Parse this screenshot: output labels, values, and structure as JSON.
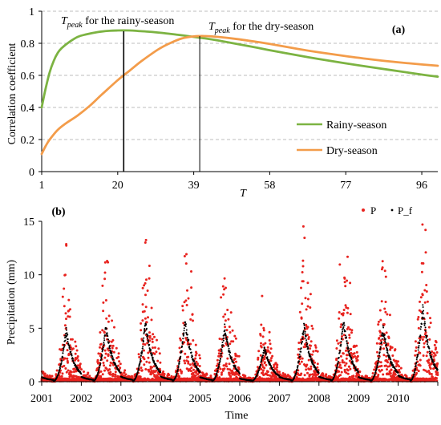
{
  "chart_data": [
    {
      "panel_label": "(a)",
      "type": "line",
      "xlabel": "T",
      "ylabel": "Correlation coefficient",
      "xlim": [
        1,
        100
      ],
      "ylim": [
        0,
        1
      ],
      "x_ticks": [
        1,
        20,
        39,
        58,
        77,
        96
      ],
      "y_ticks": [
        0,
        0.2,
        0.4,
        0.6,
        0.8,
        1
      ],
      "y_tick_labels": [
        "0",
        "0.2",
        "0.4",
        "0.6",
        "0.8",
        "1"
      ],
      "grid": "horizontal dashed",
      "legend_position": "lower-right",
      "series": [
        {
          "name": "Rainy-season",
          "color": "#7cb342",
          "x": [
            1,
            2,
            3,
            4,
            5,
            6,
            8,
            10,
            12,
            15,
            18,
            20,
            23,
            25,
            28,
            31,
            35,
            39,
            42,
            45,
            50,
            55,
            58,
            65,
            70,
            77,
            85,
            90,
            96,
            100
          ],
          "values": [
            0.4,
            0.52,
            0.62,
            0.69,
            0.74,
            0.77,
            0.81,
            0.84,
            0.855,
            0.87,
            0.878,
            0.88,
            0.88,
            0.877,
            0.872,
            0.865,
            0.853,
            0.84,
            0.83,
            0.818,
            0.795,
            0.772,
            0.757,
            0.725,
            0.703,
            0.675,
            0.645,
            0.627,
            0.605,
            0.592
          ]
        },
        {
          "name": "Dry-season",
          "color": "#f39c4a",
          "x": [
            1,
            2,
            3,
            5,
            7,
            10,
            13,
            16,
            20,
            23,
            26,
            30,
            33,
            36,
            39,
            42,
            45,
            50,
            55,
            58,
            65,
            70,
            77,
            85,
            90,
            96,
            100
          ],
          "values": [
            0.11,
            0.16,
            0.2,
            0.26,
            0.3,
            0.35,
            0.41,
            0.48,
            0.57,
            0.63,
            0.69,
            0.76,
            0.8,
            0.83,
            0.843,
            0.845,
            0.84,
            0.826,
            0.808,
            0.796,
            0.765,
            0.745,
            0.72,
            0.695,
            0.682,
            0.668,
            0.66
          ]
        }
      ],
      "annotations": [
        {
          "text_main": "T",
          "text_sub": "peak",
          "text_rest": " for the rainy-season",
          "x": 21.5
        },
        {
          "text_main": "T",
          "text_sub": "peak",
          "text_rest": " for the dry-season",
          "x": 40.5
        }
      ]
    },
    {
      "panel_label": "(b)",
      "type": "scatter",
      "xlabel": "Time",
      "ylabel": "Precipitation (mm)",
      "xlim": [
        2001,
        2011
      ],
      "ylim": [
        0,
        15
      ],
      "x_tick_labels": [
        "2001",
        "2002",
        "2003",
        "2004",
        "2005",
        "2006",
        "2007",
        "2008",
        "2009",
        "2010"
      ],
      "y_ticks": [
        0,
        5,
        10,
        15
      ],
      "legend_position": "top-right",
      "series": [
        {
          "name": "P",
          "color": "#e8231f",
          "marker": "dot",
          "note": "daily precipitation, seasonal peaks mid-year"
        },
        {
          "name": "P_f",
          "color": "#000000",
          "marker": "small-dot",
          "note": "filtered precipitation, smooth annual cycle"
        }
      ],
      "seasonal_peak_P_f": {
        "years": [
          2001,
          2002,
          2003,
          2004,
          2005,
          2006,
          2007,
          2008,
          2009,
          2010
        ],
        "peak": [
          4.8,
          5.2,
          5.5,
          5.7,
          5.0,
          3.2,
          5.2,
          5.6,
          5.0,
          6.8
        ]
      }
    }
  ]
}
